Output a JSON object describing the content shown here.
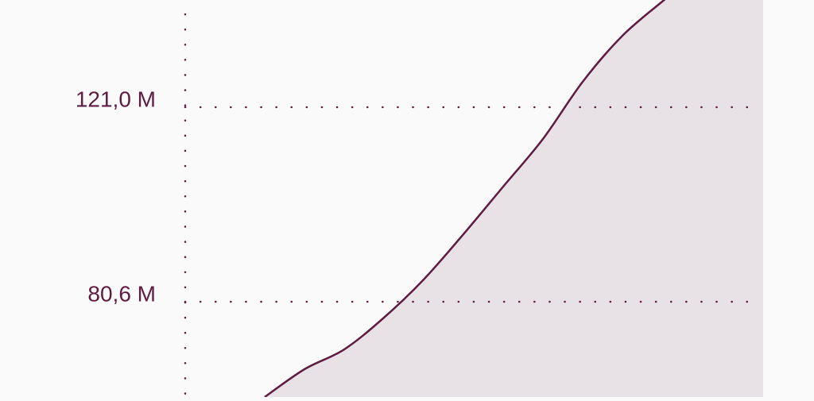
{
  "chart_data": {
    "type": "area",
    "categories": [
      null,
      null,
      null,
      null,
      null,
      null,
      null,
      null,
      null,
      null,
      null
    ],
    "series": [
      {
        "color": "#5e1d40",
        "values": [
          60810000,
          66580000,
          70700000,
          77300000,
          85220000,
          94620000,
          104510000,
          114400000,
          126280000,
          135840000,
          142930000
        ]
      }
    ],
    "ylim": [
      60810000,
      143260000
    ],
    "yticks": [
      {
        "value": 80600000,
        "label": "80,6 M"
      },
      {
        "value": 121000000,
        "label": "121,0 M"
      }
    ],
    "grid": true
  }
}
